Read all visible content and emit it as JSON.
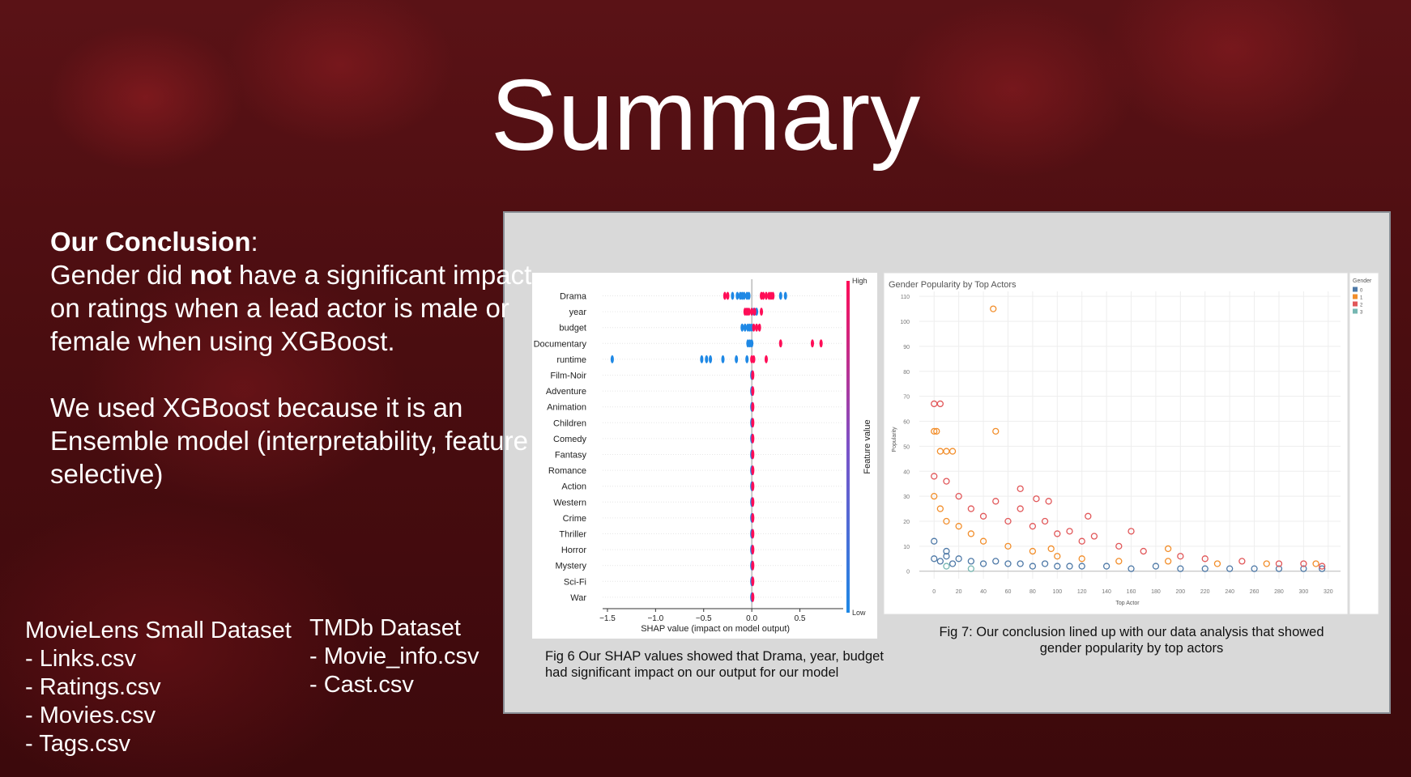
{
  "title": "Summary",
  "conclusion": {
    "heading": "Our Conclusion",
    "heading_suffix": ":",
    "text_before": "Gender did ",
    "emphasis": "not",
    "text_after": " have a significant impact on ratings when a lead actor is male or female when using XGBoost.",
    "reason": "We used XGBoost because it is an Ensemble model (interpretability, feature selective)"
  },
  "datasets": [
    {
      "name": "MovieLens Small Dataset",
      "files": [
        "- Links.csv",
        "- Ratings.csv",
        "- Movies.csv",
        "- Tags.csv"
      ]
    },
    {
      "name": "TMDb Dataset",
      "files": [
        "- Movie_info.csv",
        "- Cast.csv"
      ]
    }
  ],
  "chart_data": [
    {
      "type": "beeswarm",
      "caption": "Fig 6 Our SHAP values showed that Drama, year, budget had significant impact on our output for our model",
      "xlabel": "SHAP value (impact on model output)",
      "colorbar_label": "Feature value",
      "xlim": [
        -1.55,
        0.95
      ],
      "xticks": [
        {
          "value": -1.5,
          "label": "−1.5"
        },
        {
          "value": -1.0,
          "label": "−1.0"
        },
        {
          "value": -0.5,
          "label": "−0.5"
        },
        {
          "value": 0,
          "label": "0.0"
        },
        0.5
      ],
      "categories": [
        "Drama",
        "year",
        "budget",
        "Documentary",
        "runtime",
        "Film-Noir",
        "Adventure",
        "Animation",
        "Children",
        "Comedy",
        "Fantasy",
        "Romance",
        "Action",
        "Western",
        "Crime",
        "Thriller",
        "Horror",
        "Mystery",
        "Sci-Fi",
        "War"
      ],
      "series": [
        {
          "name": "Low",
          "color": "#1e88e5",
          "values": [
            [
              -0.2,
              -0.15,
              -0.12,
              -0.1,
              -0.08,
              -0.05,
              -0.03,
              0.3,
              0.35
            ],
            [
              -0.05,
              0.02,
              0.05
            ],
            [
              -0.1,
              -0.07,
              -0.04,
              -0.02,
              0.0
            ],
            [
              -0.04,
              -0.02,
              0.0
            ],
            [
              -1.45,
              -0.52,
              -0.47,
              -0.43,
              -0.3,
              -0.16,
              -0.05
            ],
            [
              0.0
            ],
            [
              0.0
            ],
            [
              0.0
            ],
            [
              0.0
            ],
            [
              0.0
            ],
            [
              0.0
            ],
            [
              0.0
            ],
            [
              0.0
            ],
            [
              0.0
            ],
            [
              0.0
            ],
            [
              0.0
            ],
            [
              0.0
            ],
            [
              0.0
            ],
            [
              0.0
            ],
            [
              0.0
            ]
          ]
        },
        {
          "name": "High",
          "color": "#ff0d57",
          "values": [
            [
              -0.28,
              -0.25,
              0.1,
              0.12,
              0.15,
              0.18,
              0.2,
              0.22
            ],
            [
              -0.07,
              -0.05,
              -0.03,
              0.0,
              0.03,
              0.1
            ],
            [
              0.02,
              0.05,
              0.08
            ],
            [
              0.3,
              0.63,
              0.72
            ],
            [
              0.0,
              0.02,
              0.15
            ],
            [
              0.01
            ],
            [
              0.01
            ],
            [
              0.01
            ],
            [
              0.01
            ],
            [
              0.01
            ],
            [
              0.01
            ],
            [
              0.01
            ],
            [
              0.01
            ],
            [
              0.01
            ],
            [
              0.01
            ],
            [
              0.01
            ],
            [
              0.01
            ],
            [
              0.01
            ],
            [
              0.01
            ],
            [
              0.01
            ]
          ]
        }
      ]
    },
    {
      "type": "scatter",
      "title": "Gender Popularity by Top Actors",
      "caption": "Fig 7:  Our conclusion lined up with our data analysis that showed gender popularity by top actors",
      "xlabel": "Top Actor",
      "ylabel": "Popularity",
      "legend_title": "Gender",
      "xlim": [
        -12,
        330
      ],
      "ylim": [
        -3,
        112
      ],
      "xticks": [
        0,
        20,
        40,
        60,
        80,
        100,
        120,
        140,
        160,
        180,
        200,
        220,
        240,
        260,
        280,
        300,
        320
      ],
      "yticks": [
        0,
        10,
        20,
        30,
        40,
        50,
        60,
        70,
        80,
        90,
        100,
        110
      ],
      "grid": true,
      "series": [
        {
          "name": "0",
          "color": "#4e79a7",
          "x": [
            0,
            5,
            10,
            15,
            20,
            30,
            40,
            50,
            60,
            70,
            80,
            90,
            100,
            110,
            120,
            140,
            160,
            180,
            200,
            220,
            240,
            260,
            280,
            300,
            315,
            0,
            10
          ],
          "values": [
            5,
            4,
            6,
            3,
            5,
            4,
            3,
            4,
            3,
            3,
            2,
            3,
            2,
            2,
            2,
            2,
            1,
            2,
            1,
            1,
            1,
            1,
            1,
            1,
            1,
            12,
            8
          ]
        },
        {
          "name": "1",
          "color": "#f28e2b",
          "x": [
            0,
            2,
            5,
            10,
            15,
            50,
            48,
            0,
            5,
            10,
            20,
            30,
            40,
            60,
            80,
            100,
            120,
            150,
            190,
            230,
            270,
            310,
            95,
            190
          ],
          "values": [
            56,
            56,
            48,
            48,
            48,
            56,
            105,
            30,
            25,
            20,
            18,
            15,
            12,
            10,
            8,
            6,
            5,
            4,
            4,
            3,
            3,
            3,
            9,
            9
          ]
        },
        {
          "name": "2",
          "color": "#e15759",
          "x": [
            0,
            5,
            0,
            10,
            20,
            30,
            40,
            50,
            60,
            70,
            80,
            90,
            100,
            110,
            120,
            130,
            150,
            160,
            170,
            200,
            220,
            250,
            280,
            300,
            315,
            70,
            83,
            93,
            125
          ],
          "values": [
            67,
            67,
            38,
            36,
            30,
            25,
            22,
            28,
            20,
            25,
            18,
            20,
            15,
            16,
            12,
            14,
            10,
            16,
            8,
            6,
            5,
            4,
            3,
            3,
            2,
            33,
            29,
            28,
            22
          ]
        },
        {
          "name": "3",
          "color": "#76b7b2",
          "x": [
            10,
            30
          ],
          "values": [
            2,
            1
          ]
        }
      ]
    }
  ]
}
